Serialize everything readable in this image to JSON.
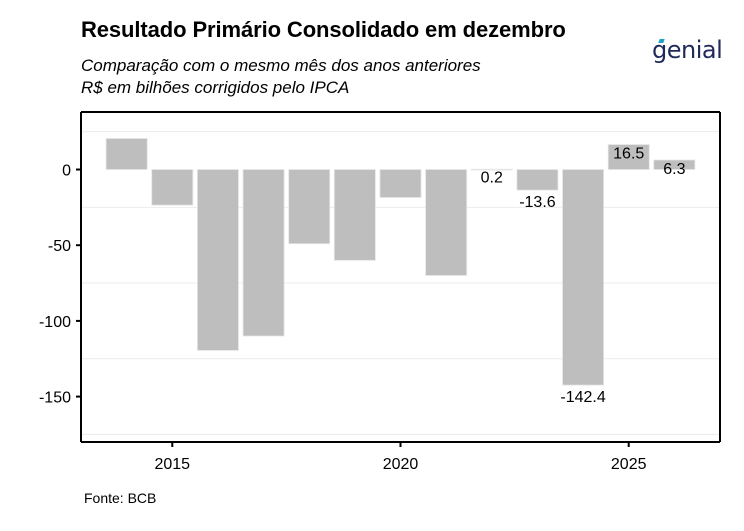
{
  "header": {
    "title": "Resultado Primário Consolidado em dezembro",
    "subtitle_line1": "Comparação com o mesmo mês dos anos anteriores",
    "subtitle_line2": "R$ em bilhões corrigidos pelo IPCA",
    "logo_text": "genial",
    "logo_icon": "genial-logo-icon"
  },
  "footer": {
    "source": "Fonte: BCB"
  },
  "colors": {
    "bar": "#bebebe",
    "grid": "#ebebeb",
    "axis": "#000000",
    "logo": "#1f2a5a",
    "logo_accent": "#1fa2c8"
  },
  "chart_data": {
    "type": "bar",
    "title": "Resultado Primário Consolidado em dezembro",
    "subtitle": "Comparação com o mesmo mês dos anos anteriores / R$ em bilhões corrigidos pelo IPCA",
    "xlabel": "",
    "ylabel": "",
    "categories": [
      2014,
      2015,
      2016,
      2017,
      2018,
      2019,
      2020,
      2021,
      2022,
      2023,
      2024,
      2025,
      2026
    ],
    "values": [
      20.5,
      -23.5,
      -119.5,
      -110.0,
      -49.0,
      -60.0,
      -18.5,
      -70.0,
      0.2,
      -13.6,
      -142.4,
      16.5,
      6.3
    ],
    "data_labels": [
      null,
      null,
      null,
      null,
      null,
      null,
      null,
      null,
      "0.2",
      "-13.6",
      "-142.4",
      "16.5",
      "6.3"
    ],
    "xlim": [
      2013,
      2027
    ],
    "ylim": [
      -180,
      38
    ],
    "x_ticks": [
      2015,
      2020,
      2025
    ],
    "x_tick_labels": [
      "2015",
      "2020",
      "2025"
    ],
    "y_ticks": [
      0,
      -50,
      -100,
      -150
    ],
    "y_tick_labels": [
      "0",
      "-50",
      "-100",
      "-150"
    ],
    "grid": true,
    "minor_grid": [
      25,
      -25,
      -75,
      -125,
      -175
    ],
    "legend": "none"
  }
}
